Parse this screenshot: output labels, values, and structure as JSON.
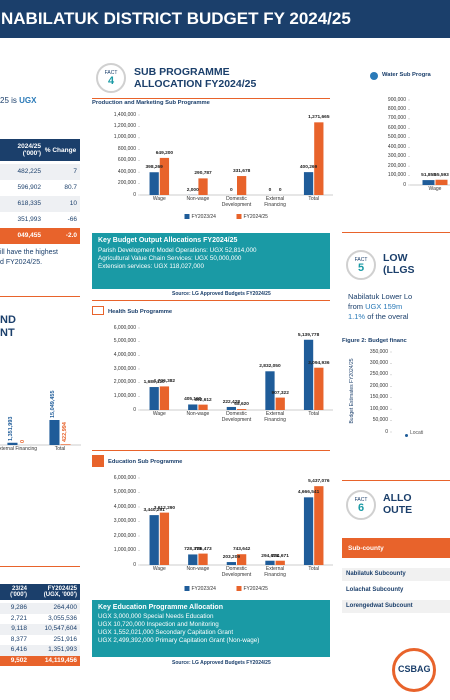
{
  "header": {
    "title": "NABILATUK DISTRICT BUDGET FY 2024/25"
  },
  "intro": {
    "text": "25 is ",
    "highlight": "UGX"
  },
  "budget_table": {
    "headers": [
      "2024/25 ('000')",
      "% Change"
    ],
    "rows": [
      [
        "482,225",
        "7"
      ],
      [
        "596,902",
        "80.7"
      ],
      [
        "618,335",
        "10"
      ],
      [
        "351,993",
        "-66"
      ],
      [
        "049,455",
        "-2.0"
      ]
    ]
  },
  "note": [
    "ill have the highest",
    "d FY2024/25."
  ],
  "section_heading": [
    "ND",
    "NT"
  ],
  "program_table": {
    "headers": [
      "23/24 ('000')",
      "FY2024/25 (UGX, '000')"
    ],
    "rows": [
      [
        "9,286",
        "264,400"
      ],
      [
        "2,721",
        "3,055,536"
      ],
      [
        "9,118",
        "10,547,604"
      ],
      [
        "8,377",
        "251,916"
      ],
      [
        "6,416",
        "1,351,993"
      ],
      [
        "9,502",
        "14,119,456"
      ]
    ]
  },
  "fact4": {
    "badge": "FACT",
    "number": "4",
    "title": [
      "SUB PROGRAMME",
      "ALLOCATION FY2024/25"
    ]
  },
  "output_box": {
    "title": "Key Budget Output Allocations FY2024/25",
    "items": [
      "Parish Development Model Operations: UGX 52,814,000",
      "Agricultural Value Chain Services: UGX 50,000,000",
      "Extension services: UGX 118,027,000"
    ]
  },
  "source_1": "Source: LG Approved Budgets FY2024/25",
  "education_box": {
    "title": "Key Education Programme Allocation",
    "items": [
      "UGX 3,000,000 Special Needs Education",
      "UGX 10,720,000 Inspection and Monitoring",
      "UGX 1,552,021,000 Secondary Capitation Grant",
      "UGX 2,499,392,000 Primary Capitation Grant (Non-wage)"
    ]
  },
  "source_2": "Source: LG Approved Budgets FY2024/25",
  "fact5": {
    "badge": "FACT",
    "number": "5",
    "title": [
      "LOW",
      "(LLGS"
    ],
    "line1": "Nabilatuk Lower Lo",
    "line2": [
      "from ",
      "UGX 159m"
    ],
    "line3": [
      "1.1%",
      " of the overal"
    ]
  },
  "fact6": {
    "badge": "FACT",
    "number": "6",
    "title": [
      "ALLO",
      "OUTE"
    ]
  },
  "subcounty_table": {
    "header": "Sub-county",
    "rows": [
      "Nabilatuk Subcounty",
      "Lolachat Subcounty",
      "Lorengedwat Subcount"
    ]
  },
  "logo": "CSBAG",
  "charts": [
    {
      "type": "bar",
      "title": "Production and Marketing Sub Programme",
      "categories": [
        "Wage",
        "Non-wage",
        "Domestic Development",
        "External Financing",
        "Total"
      ],
      "series": [
        {
          "name": "FY2023/24",
          "color": "#1f5c99",
          "values": [
            398269,
            2000,
            0,
            0,
            400269
          ],
          "value_labels": [
            "398,269",
            "2,000",
            "0",
            "0",
            "400,269"
          ]
        },
        {
          "name": "FY2024/25",
          "color": "#e8632b",
          "values": [
            649200,
            290787,
            331678,
            0,
            1271665
          ],
          "value_labels": [
            "649,200",
            "290,787",
            "331,678",
            "0",
            "1,271,665"
          ]
        }
      ],
      "ylim": [
        0,
        1400000
      ],
      "yticks": [
        0,
        {
          "value": 200000,
          "label": "200,000"
        },
        {
          "value": 400000,
          "label": "400,000"
        },
        {
          "value": 600000,
          "label": "600,000"
        },
        {
          "value": 800000,
          "label": "800,000"
        },
        {
          "value": 1000000,
          "label": "1,000,000"
        },
        {
          "value": 1200000,
          "label": "1,200,000"
        },
        {
          "value": 1400000,
          "label": "1,400,000"
        }
      ],
      "legend": true
    },
    {
      "type": "bar",
      "title": "Health Sub Programme",
      "categories": [
        "Wage",
        "Non-wage",
        "Domestic Development",
        "External Financing",
        "Total"
      ],
      "series": [
        {
          "color": "#1f5c99",
          "values": [
            1680110,
            405190,
            222428,
            2832050,
            5139778
          ],
          "value_labels": [
            "1,680,110",
            "405,190",
            "222,428",
            "2,832,050",
            "5,139,778"
          ]
        },
        {
          "color": "#e8632b",
          "values": [
            1726382,
            392612,
            68620,
            907322,
            3094936
          ],
          "value_labels": [
            "1,726,382",
            "392,612",
            "68,620",
            "907,322",
            "3,094,936"
          ]
        }
      ],
      "ylim": [
        0,
        6000000
      ],
      "yticks": [
        0,
        {
          "value": 1000000,
          "label": "1,000,000"
        },
        {
          "value": 2000000,
          "label": "2,000,000"
        },
        {
          "value": 3000000,
          "label": "3,000,000"
        },
        {
          "value": 4000000,
          "label": "4,000,000"
        },
        {
          "value": 5000000,
          "label": "5,000,000"
        },
        {
          "value": 6000000,
          "label": "6,000,000"
        }
      ],
      "legend": false
    },
    {
      "type": "bar",
      "title": "Education Sub Programme",
      "categories": [
        "Wage",
        "Non-wage",
        "Domestic Development",
        "External Financing",
        "Total"
      ],
      "series": [
        {
          "name": "FY2023/24",
          "color": "#1f5c99",
          "values": [
            3440291,
            728370,
            203209,
            294671,
            4666541
          ],
          "value_labels": [
            "3,440,291",
            "728,370",
            "203,209",
            "294,671",
            "4,666,541"
          ]
        },
        {
          "name": "FY2024/25",
          "color": "#e8632b",
          "values": [
            3612290,
            786473,
            743642,
            294671,
            5437076
          ],
          "value_labels": [
            "3,612,290",
            "786,473",
            "743,642",
            "294,671",
            "5,437,076"
          ]
        }
      ],
      "ylim": [
        0,
        6000000
      ],
      "yticks": [
        0,
        {
          "value": 1000000,
          "label": "1,000,000"
        },
        {
          "value": 2000000,
          "label": "2,000,000"
        },
        {
          "value": 3000000,
          "label": "3,000,000"
        },
        {
          "value": 4000000,
          "label": "4,000,000"
        },
        {
          "value": 5000000,
          "label": "5,000,000"
        },
        {
          "value": 6000000,
          "label": "6,000,000"
        }
      ],
      "legend": true
    },
    {
      "type": "bar",
      "title": "Water Sub Progra",
      "categories": [
        "Wage"
      ],
      "series": [
        {
          "color": "#1f5c99",
          "values": [
            51858
          ],
          "value_labels": [
            "51,858"
          ]
        },
        {
          "color": "#e8632b",
          "values": [
            55593
          ],
          "value_labels": [
            "55,593"
          ]
        }
      ],
      "ylim": [
        0,
        900000
      ],
      "yticks": [
        0,
        {
          "value": 100000,
          "label": "100,000"
        },
        {
          "value": 200000,
          "label": "200,000"
        },
        {
          "value": 300000,
          "label": "300,000"
        },
        {
          "value": 400000,
          "label": "400,000"
        },
        {
          "value": 500000,
          "label": "500,000"
        },
        {
          "value": 600000,
          "label": "600,000"
        },
        {
          "value": 700000,
          "label": "700,000"
        },
        {
          "value": 800000,
          "label": "800,000"
        },
        {
          "value": 900000,
          "label": "900,000"
        }
      ],
      "legend": false
    },
    {
      "type": "bar",
      "categories": [
        "xternal Financing",
        "Total"
      ],
      "series": [
        {
          "color": "#1f5c99",
          "values": [
            1351993,
            15049455
          ],
          "value_labels": [
            "1,351,993",
            "15,049,455"
          ]
        },
        {
          "color": "#e8632b",
          "values": [
            0,
            422994
          ],
          "value_labels": [
            "0",
            "422,994"
          ]
        }
      ],
      "legend": false
    },
    {
      "type": "bar",
      "title": "Figure 2: Budget financ",
      "y_label": "Budget Estimates FY2024/25",
      "x_label": "Locati",
      "categories": [],
      "series": [],
      "ylim": [
        0,
        350000
      ],
      "yticks": [
        0,
        {
          "value": 50000,
          "label": "50,000"
        },
        {
          "value": 100000,
          "label": "100,000"
        },
        {
          "value": 150000,
          "label": "150,000"
        },
        {
          "value": 200000,
          "label": "200,000"
        },
        {
          "value": 250000,
          "label": "250,000"
        },
        {
          "value": 300000,
          "label": "300,000"
        },
        {
          "value": 350000,
          "label": "350,000"
        }
      ],
      "legend": false
    }
  ]
}
